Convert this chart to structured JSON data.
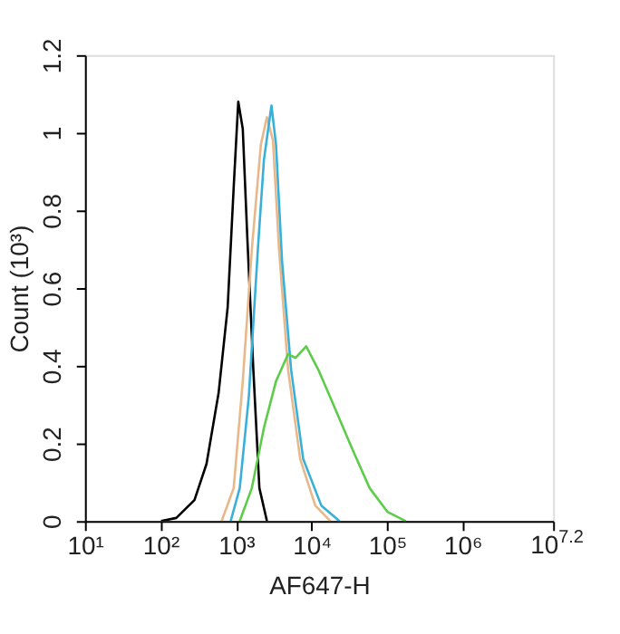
{
  "chart_data": {
    "type": "line",
    "xlabel": "AF647-H",
    "ylabel": "Count (10³)",
    "log": "x",
    "grid": false,
    "line_style": "solid",
    "marker": "none",
    "xlim": [
      10,
      15848932
    ],
    "ylim": [
      0,
      1.2
    ],
    "xticks": [
      {
        "value": 10,
        "label": "10¹"
      },
      {
        "value": 100,
        "label": "10²"
      },
      {
        "value": 1000,
        "label": "10³"
      },
      {
        "value": 10000,
        "label": "10⁴"
      },
      {
        "value": 100000,
        "label": "10⁵"
      },
      {
        "value": 1000000,
        "label": "10⁶"
      },
      {
        "value": 15848932,
        "label": "10$^{7.2}$"
      }
    ],
    "yticks": [
      0,
      0.2,
      0.4,
      0.6,
      0.8,
      1,
      1.2
    ],
    "series": [
      {
        "color": "#000000",
        "x": [
          102,
          162,
          282,
          407,
          589,
          776,
          933,
          1072,
          1230,
          1413,
          1698,
          2042,
          2570
        ],
        "values": [
          0,
          0.008,
          0.054,
          0.147,
          0.33,
          0.55,
          0.86,
          1.08,
          1.01,
          0.73,
          0.39,
          0.085,
          0
        ]
      },
      {
        "color": "#e8b88a",
        "x": [
          646,
          933,
          1230,
          1622,
          2138,
          2570,
          3090,
          3715,
          4898,
          7079,
          11220,
          17780
        ],
        "values": [
          0,
          0.085,
          0.36,
          0.7,
          0.97,
          1.04,
          0.98,
          0.7,
          0.39,
          0.16,
          0.04,
          0
        ]
      },
      {
        "color": "#3ab0d8",
        "x": [
          851,
          1122,
          1479,
          1950,
          2344,
          2951,
          3388,
          4074,
          5370,
          7762,
          13490,
          23440
        ],
        "values": [
          0,
          0.085,
          0.32,
          0.7,
          0.93,
          1.07,
          0.97,
          0.67,
          0.39,
          0.16,
          0.04,
          0
        ]
      },
      {
        "color": "#5ccc4a",
        "x": [
          1122,
          1622,
          2344,
          3388,
          4898,
          6166,
          8511,
          12300,
          19500,
          33880,
          58880,
          102300,
          177800
        ],
        "values": [
          0,
          0.085,
          0.24,
          0.36,
          0.43,
          0.42,
          0.45,
          0.39,
          0.3,
          0.19,
          0.085,
          0.023,
          0
        ]
      }
    ]
  }
}
